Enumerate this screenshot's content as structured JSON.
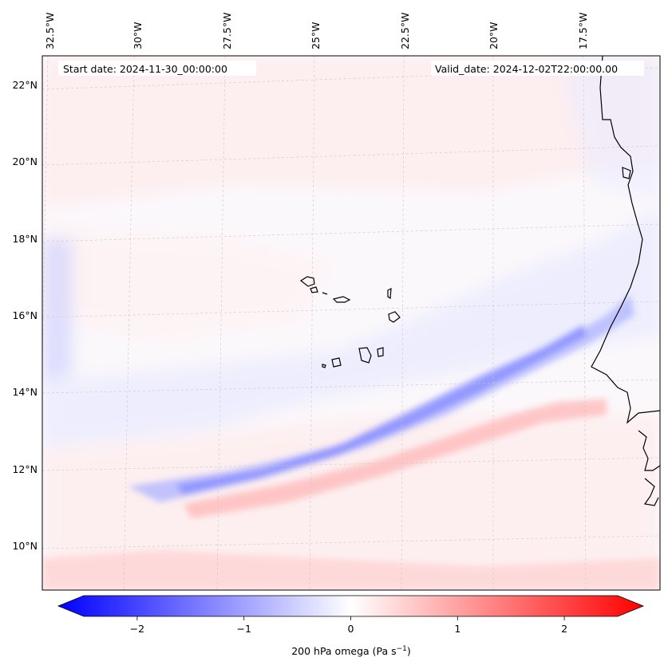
{
  "map": {
    "start_date": "Start date: 2024-11-30_00:00:00",
    "valid_date": "Valid_date: 2024-12-02T22:00:00.00",
    "lon_labels": [
      "32.5°W",
      "30°W",
      "27.5°W",
      "25°W",
      "22.5°W",
      "20°W",
      "17.5°W"
    ],
    "lat_labels": [
      "22°N",
      "20°N",
      "18°N",
      "16°N",
      "14°N",
      "12°N",
      "10°N"
    ],
    "field": "200 hPa omega",
    "domain_lon": [
      -32.6,
      -15.4
    ],
    "domain_lat": [
      8.9,
      22.8
    ]
  },
  "colorbar": {
    "label_main": "200 hPa omega (Pa s",
    "label_sup": "−1",
    "label_close": ")",
    "ticks": [
      "−2",
      "−1",
      "0",
      "1",
      "2"
    ],
    "tick_values": [
      -2,
      -1,
      0,
      1,
      2
    ],
    "range": [
      -2.5,
      2.5
    ],
    "neg_color": "#0000ff",
    "pos_color": "#ff0000",
    "mid_color": "#ffffff"
  }
}
